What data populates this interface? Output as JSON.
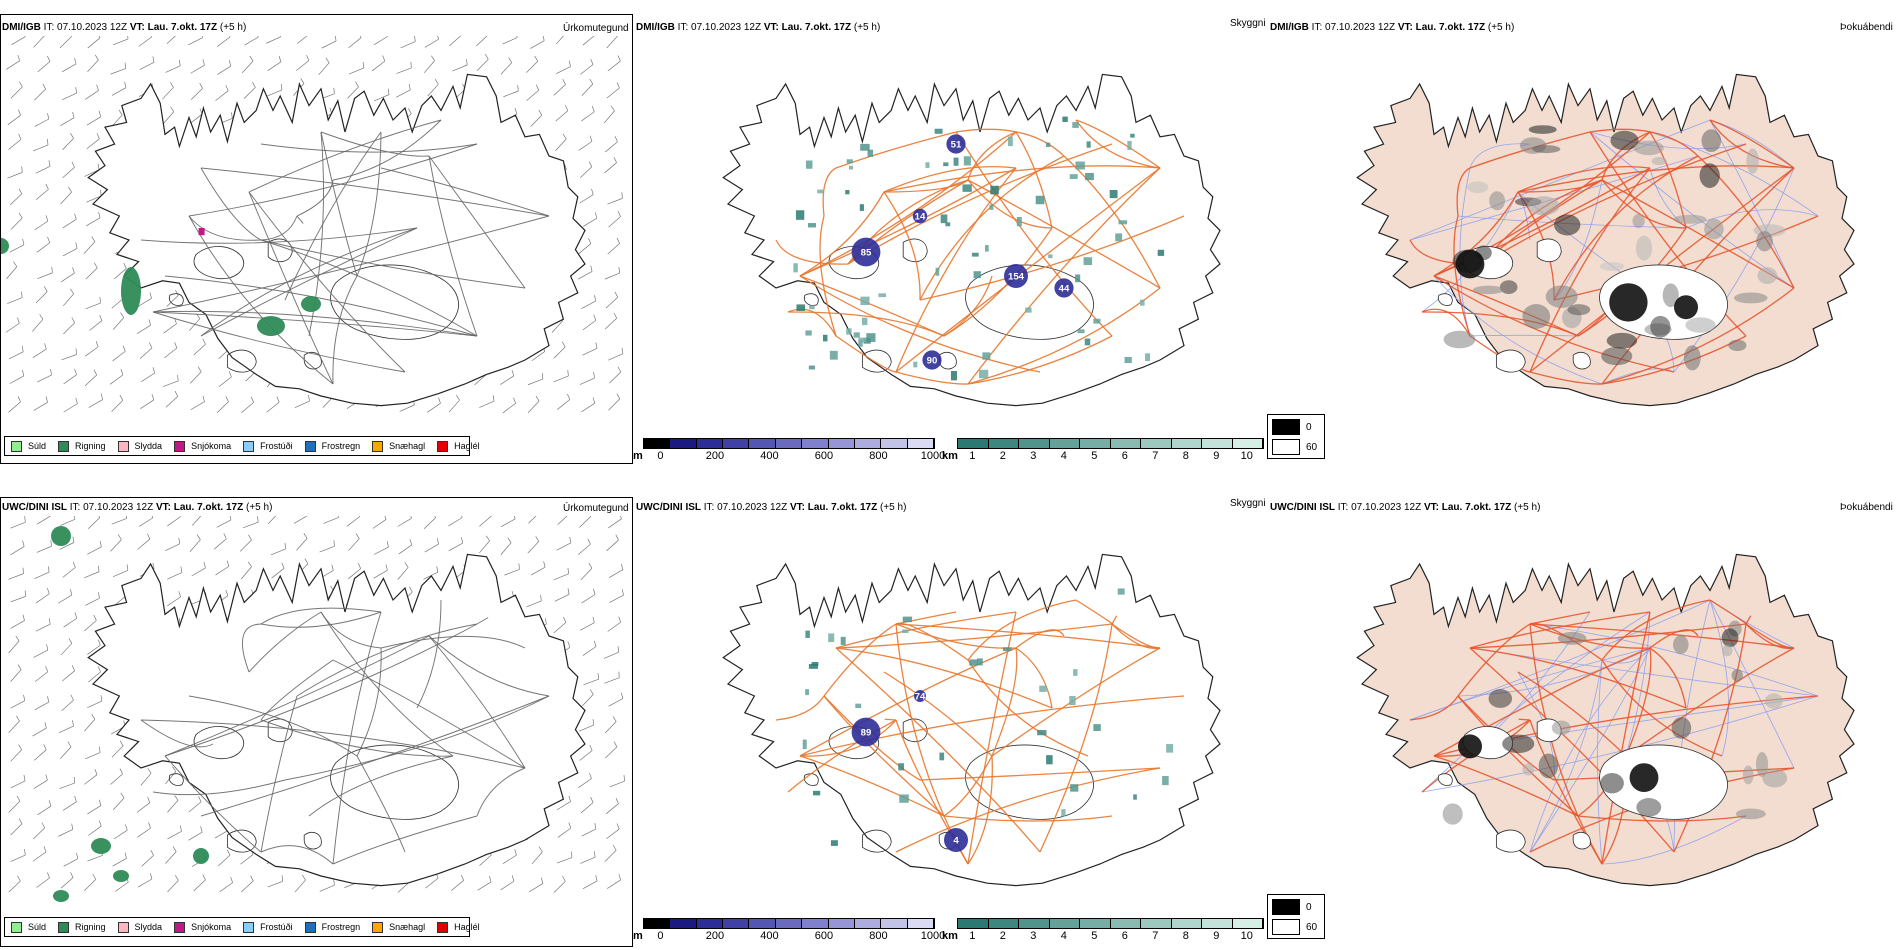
{
  "rows": [
    {
      "model": "DMI/IGB",
      "init_label": "IT:",
      "init_time": "07.10.2023 12Z",
      "valid_label": "VT:",
      "valid_time": "Lau. 7.okt. 17Z",
      "lead": "(+5 h)"
    },
    {
      "model": "UWC/DINI ISL",
      "init_label": "IT:",
      "init_time": "07.10.2023 12Z",
      "valid_label": "VT:",
      "valid_time": "Lau. 7.okt. 17Z",
      "lead": "(+5 h)"
    }
  ],
  "panels": {
    "precip_title": "Úrkomutegund",
    "cloud_title": "Skyggni",
    "fog_title": "Þokuábendi"
  },
  "precip_legend": [
    {
      "label": "Súld",
      "color": "#90ee90"
    },
    {
      "label": "Rigning",
      "color": "#2e8b57"
    },
    {
      "label": "Slydda",
      "color": "#ffb6c1"
    },
    {
      "label": "Snjókoma",
      "color": "#c71585"
    },
    {
      "label": "Frostúði",
      "color": "#87cefa"
    },
    {
      "label": "Frostregn",
      "color": "#1e6fbf"
    },
    {
      "label": "Snæhagl",
      "color": "#ffa500"
    },
    {
      "label": "Haglél",
      "color": "#e00000"
    }
  ],
  "cloudbase_scale": {
    "unit": "m",
    "labels": [
      "0",
      "200",
      "400",
      "600",
      "800",
      "1000"
    ],
    "colors": [
      "#000000",
      "#1a1a80",
      "#2d2d99",
      "#4040a6",
      "#5555b3",
      "#6a6abf",
      "#8080cc",
      "#9696d6",
      "#acacdf",
      "#c3c3e8",
      "#dadaf2"
    ]
  },
  "visibility_scale": {
    "unit": "km",
    "labels": [
      "1",
      "2",
      "3",
      "4",
      "5",
      "6",
      "7",
      "8",
      "9",
      "10"
    ],
    "colors": [
      "#2a7a72",
      "#3d877f",
      "#50948c",
      "#63a199",
      "#76aea6",
      "#89bbb3",
      "#9cc8c0",
      "#afd5cd",
      "#c2e2da",
      "#d5efe7"
    ]
  },
  "fog_scale": [
    {
      "label": "0",
      "color": "#000000"
    },
    {
      "label": "60",
      "color": "#ffffff"
    }
  ],
  "cloud_labels": [
    [
      "85",
      "154",
      "44",
      "14",
      "90",
      "51"
    ],
    [
      "89",
      "4",
      "74"
    ]
  ],
  "colors": {
    "road": "#e8772e",
    "fog_land": "#f2ddd0",
    "fog_road": "#e8552e",
    "river": "#8ea0f0"
  }
}
